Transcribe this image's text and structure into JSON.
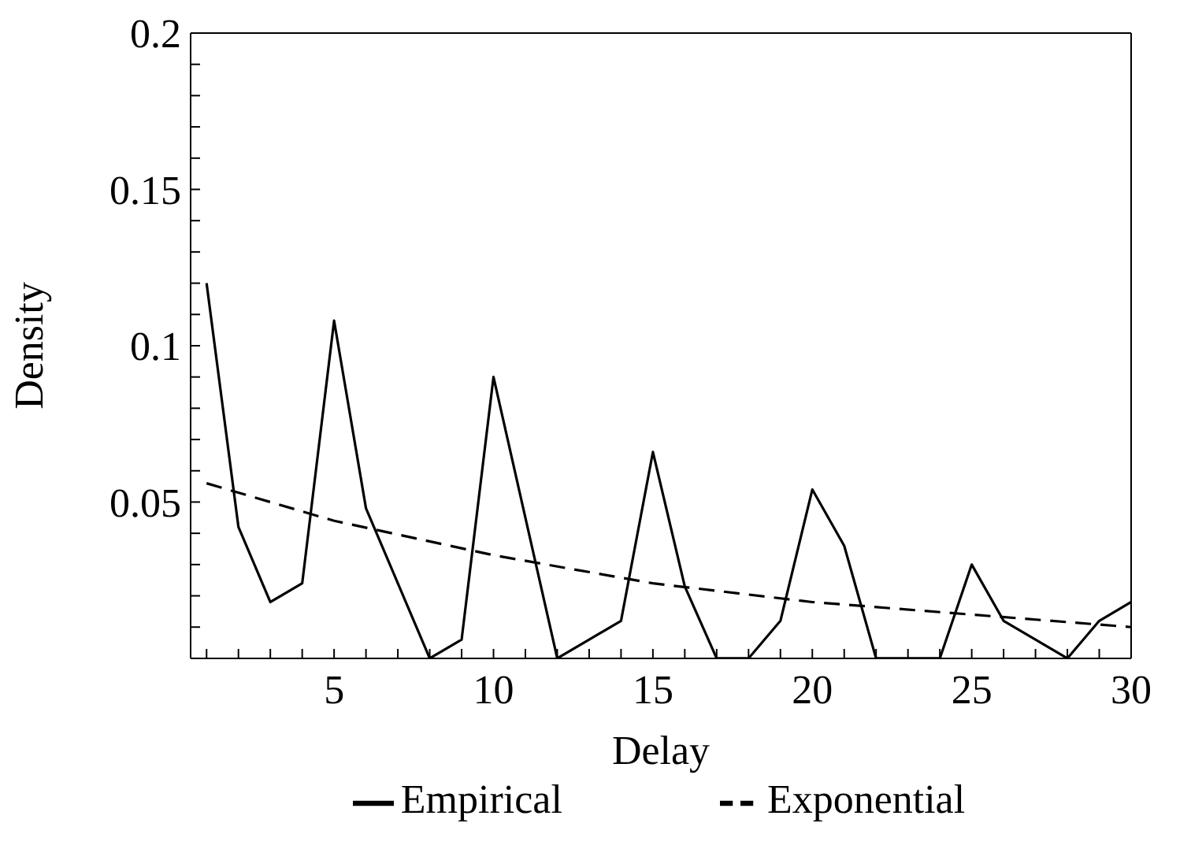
{
  "chart_data": {
    "type": "line",
    "xlabel": "Delay",
    "ylabel": "Density",
    "xlim": [
      0.5,
      30
    ],
    "ylim": [
      0,
      0.2
    ],
    "xticks": [
      {
        "value": 1,
        "label": null
      },
      {
        "value": 2,
        "label": null
      },
      {
        "value": 3,
        "label": null
      },
      {
        "value": 4,
        "label": null
      },
      5,
      {
        "value": 6,
        "label": null
      },
      {
        "value": 7,
        "label": null
      },
      {
        "value": 8,
        "label": null
      },
      {
        "value": 9,
        "label": null
      },
      10,
      {
        "value": 11,
        "label": null
      },
      {
        "value": 12,
        "label": null
      },
      {
        "value": 13,
        "label": null
      },
      {
        "value": 14,
        "label": null
      },
      15,
      {
        "value": 16,
        "label": null
      },
      {
        "value": 17,
        "label": null
      },
      {
        "value": 18,
        "label": null
      },
      {
        "value": 19,
        "label": null
      },
      20,
      {
        "value": 21,
        "label": null
      },
      {
        "value": 22,
        "label": null
      },
      {
        "value": 23,
        "label": null
      },
      {
        "value": 24,
        "label": null
      },
      25,
      {
        "value": 26,
        "label": null
      },
      {
        "value": 27,
        "label": null
      },
      {
        "value": 28,
        "label": null
      },
      {
        "value": 29,
        "label": null
      },
      30
    ],
    "yticks": [
      {
        "value": 0,
        "label": null
      },
      {
        "value": 0.01,
        "label": null
      },
      {
        "value": 0.02,
        "label": null
      },
      {
        "value": 0.03,
        "label": null
      },
      {
        "value": 0.04,
        "label": null
      },
      0.05,
      {
        "value": 0.06,
        "label": null
      },
      {
        "value": 0.07,
        "label": null
      },
      {
        "value": 0.08,
        "label": null
      },
      {
        "value": 0.09,
        "label": null
      },
      0.1,
      {
        "value": 0.11,
        "label": null
      },
      {
        "value": 0.12,
        "label": null
      },
      {
        "value": 0.13,
        "label": null
      },
      {
        "value": 0.14,
        "label": null
      },
      0.15,
      {
        "value": 0.16,
        "label": null
      },
      {
        "value": 0.17,
        "label": null
      },
      {
        "value": 0.18,
        "label": null
      },
      {
        "value": 0.19,
        "label": null
      },
      0.2
    ],
    "legend": "bottom",
    "marker": "none",
    "series": [
      {
        "name": "Empirical",
        "color": "#000000",
        "line_style": "solid",
        "x": [
          1,
          2,
          3,
          4,
          5,
          6,
          7,
          8,
          9,
          10,
          11,
          12,
          13,
          14,
          15,
          16,
          17,
          18,
          19,
          20,
          21,
          22,
          23,
          24,
          25,
          26,
          27,
          28,
          29,
          30
        ],
        "values": [
          0.12,
          0.042,
          0.018,
          0.024,
          0.108,
          0.048,
          0.024,
          0,
          0.006,
          0.09,
          0.045,
          0,
          0.006,
          0.012,
          0.066,
          0.023,
          0,
          0,
          0.012,
          0.054,
          0.036,
          0,
          0,
          0,
          0.03,
          0.012,
          0.006,
          0,
          0.012,
          0.018
        ]
      },
      {
        "name": "Exponential",
        "color": "#000000",
        "line_style": "dashed",
        "x": [
          1,
          5,
          10,
          15,
          20,
          25,
          30
        ],
        "values": [
          0.056,
          0.044,
          0.033,
          0.024,
          0.018,
          0.014,
          0.01
        ]
      }
    ]
  }
}
